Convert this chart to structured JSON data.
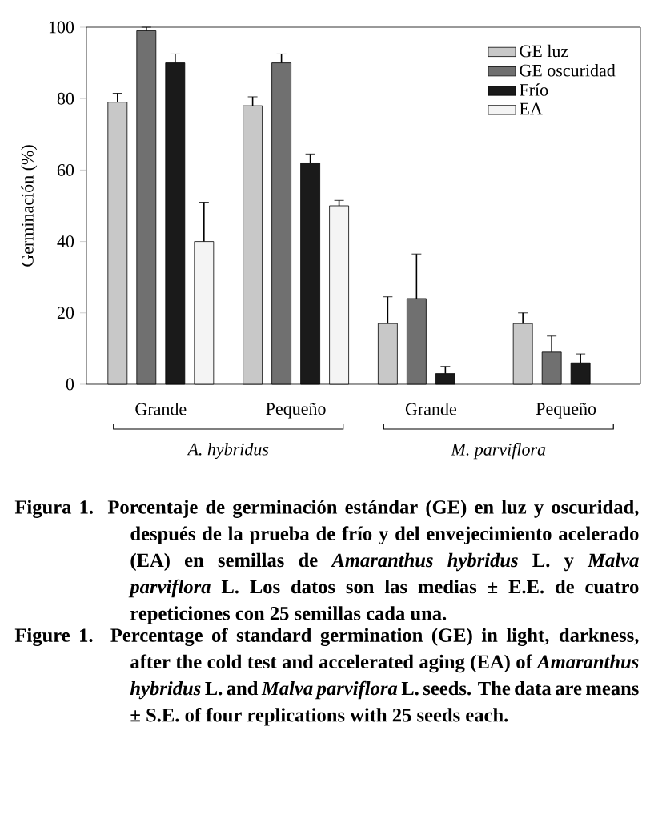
{
  "chart_data": {
    "type": "bar",
    "ylabel": "Germinación (%)",
    "categories": [
      "Grande",
      "Pequeño",
      "Grande",
      "Pequeño"
    ],
    "series": [
      {
        "name": "GE luz",
        "color": "#c8c8c8",
        "values": [
          79,
          78,
          17,
          17
        ],
        "errors": [
          2.5,
          2.5,
          7.5,
          3
        ]
      },
      {
        "name": "GE oscuridad",
        "color": "#707070",
        "values": [
          99,
          90,
          24,
          9
        ],
        "errors": [
          1,
          2.5,
          12.5,
          4.5
        ]
      },
      {
        "name": "Frío",
        "color": "#1a1a1a",
        "values": [
          90,
          62,
          3,
          6
        ],
        "errors": [
          2.5,
          2.5,
          2,
          2.5
        ]
      },
      {
        "name": "EA",
        "color": "#f4f4f4",
        "values": [
          40,
          50,
          null,
          null
        ],
        "errors": [
          11,
          1.5,
          null,
          null
        ]
      }
    ],
    "ylim": [
      0,
      100
    ],
    "yticks": [
      0,
      20,
      40,
      60,
      80,
      100
    ],
    "legend": "top right",
    "annotations": [
      "*A. hybridus*",
      "*M. parviflora*",
      "Figura 1. Porcentaje de germinación estándar (GE) en luz y oscuridad, después de la prueba de frío y del envejecimiento acelerado (EA) en semillas de *Amaranthus hybridus* L. y *Malva parviflora* L. Los datos son las medias ± E.E. de cuatro repeticiones con 25 semillas cada una.",
      "Figure 1. Percentage of standard germination (GE) in light, darkness, after the cold test and accelerated aging (EA) of *Amaranthus hybridus* L. and *Malva parviflora* L. seeds. The data are means ± S.E. of four replications with 25 seeds each."
    ]
  }
}
